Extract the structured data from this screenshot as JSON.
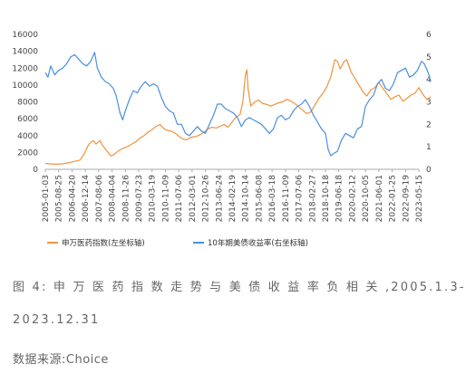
{
  "caption": {
    "line1": "图 4: 申 万 医 药 指 数 走 势 与 美 债 收 益 率 负 相 关 ,2005.1.3-",
    "line2": "2023.12.31",
    "source": "数据来源:Choice"
  },
  "colors": {
    "series1": "#f0923d",
    "series2": "#4a8fe0",
    "axis": "#aaaaaa"
  },
  "chart_data": {
    "type": "line",
    "legend_position": "bottom",
    "grid": false,
    "y_left": {
      "lim": [
        0,
        16000
      ],
      "ticks": [
        "0",
        "2000",
        "4000",
        "6000",
        "8000",
        "10000",
        "12000",
        "14000",
        "16000"
      ]
    },
    "y_right": {
      "lim": [
        0,
        6
      ],
      "ticks": [
        "0",
        "1",
        "2",
        "3",
        "4",
        "5",
        "6"
      ]
    },
    "x_ticks": [
      "2005-01-03",
      "2005-08-25",
      "2006-04-20",
      "2006-12-14",
      "2007-08-06",
      "2008-04-04",
      "2008-11-26",
      "2009-07-23",
      "2010-03-19",
      "2010-11-09",
      "2011-07-06",
      "2012-03-01",
      "2012-10-26",
      "2013-06-24",
      "2014-02-19",
      "2014-10-14",
      "2015-06-08",
      "2016-03-18",
      "2016-11-09",
      "2017-07-06",
      "2018-02-27",
      "2018-10-18",
      "2019-06-18",
      "2020-02-12",
      "2020-10-05",
      "2021-06-01",
      "2022-01-25",
      "2022-09-19",
      "2023-05-15"
    ],
    "series": [
      {
        "name": "申万医药指数(左坐标轴)",
        "axis": "left",
        "values": [
          [
            0,
            700
          ],
          [
            0.3,
            650
          ],
          [
            0.8,
            600
          ],
          [
            1.3,
            650
          ],
          [
            1.8,
            800
          ],
          [
            2.2,
            950
          ],
          [
            2.6,
            1100
          ],
          [
            2.9,
            1800
          ],
          [
            3.2,
            2800
          ],
          [
            3.4,
            3200
          ],
          [
            3.6,
            3400
          ],
          [
            3.8,
            3000
          ],
          [
            4.1,
            3400
          ],
          [
            4.3,
            2800
          ],
          [
            4.6,
            2200
          ],
          [
            4.9,
            1600
          ],
          [
            5.1,
            1700
          ],
          [
            5.4,
            2100
          ],
          [
            5.7,
            2400
          ],
          [
            6.0,
            2600
          ],
          [
            6.3,
            2800
          ],
          [
            6.6,
            3100
          ],
          [
            6.8,
            3300
          ],
          [
            7.1,
            3700
          ],
          [
            7.4,
            4000
          ],
          [
            7.7,
            4400
          ],
          [
            8.0,
            4700
          ],
          [
            8.3,
            5100
          ],
          [
            8.6,
            5300
          ],
          [
            8.9,
            4800
          ],
          [
            9.2,
            4600
          ],
          [
            9.5,
            4500
          ],
          [
            9.8,
            4200
          ],
          [
            10.1,
            3800
          ],
          [
            10.3,
            3600
          ],
          [
            10.6,
            3500
          ],
          [
            10.9,
            3800
          ],
          [
            11.3,
            3900
          ],
          [
            11.6,
            4100
          ],
          [
            11.9,
            4400
          ],
          [
            12.2,
            4800
          ],
          [
            12.5,
            5000
          ],
          [
            12.8,
            4900
          ],
          [
            13.1,
            5100
          ],
          [
            13.4,
            5300
          ],
          [
            13.7,
            5000
          ],
          [
            14.0,
            5600
          ],
          [
            14.3,
            6200
          ],
          [
            14.6,
            6500
          ],
          [
            14.8,
            8000
          ],
          [
            15.0,
            11200
          ],
          [
            15.1,
            11800
          ],
          [
            15.2,
            9500
          ],
          [
            15.4,
            7500
          ],
          [
            15.7,
            8000
          ],
          [
            16.0,
            8200
          ],
          [
            16.3,
            7800
          ],
          [
            16.6,
            7700
          ],
          [
            16.9,
            7500
          ],
          [
            17.2,
            7700
          ],
          [
            17.5,
            7900
          ],
          [
            17.8,
            8000
          ],
          [
            18.1,
            8300
          ],
          [
            18.4,
            8100
          ],
          [
            18.7,
            7800
          ],
          [
            19.0,
            7400
          ],
          [
            19.3,
            7000
          ],
          [
            19.6,
            6600
          ],
          [
            19.9,
            6800
          ],
          [
            20.2,
            7600
          ],
          [
            20.5,
            8400
          ],
          [
            20.8,
            9000
          ],
          [
            21.1,
            9800
          ],
          [
            21.4,
            11000
          ],
          [
            21.7,
            13000
          ],
          [
            21.9,
            12800
          ],
          [
            22.1,
            11900
          ],
          [
            22.4,
            12800
          ],
          [
            22.6,
            13000
          ],
          [
            22.9,
            11600
          ],
          [
            23.2,
            10800
          ],
          [
            23.5,
            10000
          ],
          [
            23.8,
            9200
          ],
          [
            24.1,
            8700
          ],
          [
            24.4,
            9400
          ],
          [
            24.7,
            9700
          ],
          [
            25.0,
            10300
          ],
          [
            25.3,
            9600
          ],
          [
            25.6,
            9000
          ],
          [
            25.9,
            8300
          ],
          [
            26.2,
            8600
          ],
          [
            26.5,
            8800
          ],
          [
            26.8,
            8100
          ],
          [
            27.1,
            8400
          ],
          [
            27.4,
            8800
          ],
          [
            27.7,
            9000
          ],
          [
            28.0,
            9700
          ],
          [
            28.3,
            8900
          ],
          [
            28.6,
            8300
          ],
          [
            28.9,
            8600
          ]
        ]
      },
      {
        "name": "10年期美债收益率(右坐标轴)",
        "axis": "right",
        "values": [
          [
            0,
            4.3
          ],
          [
            0.2,
            4.1
          ],
          [
            0.4,
            4.6
          ],
          [
            0.7,
            4.2
          ],
          [
            1.0,
            4.4
          ],
          [
            1.3,
            4.5
          ],
          [
            1.6,
            4.7
          ],
          [
            1.9,
            5.0
          ],
          [
            2.2,
            5.1
          ],
          [
            2.5,
            4.9
          ],
          [
            2.8,
            4.7
          ],
          [
            3.1,
            4.6
          ],
          [
            3.4,
            4.8
          ],
          [
            3.7,
            5.2
          ],
          [
            3.9,
            4.5
          ],
          [
            4.2,
            4.1
          ],
          [
            4.5,
            3.9
          ],
          [
            4.8,
            3.8
          ],
          [
            5.1,
            3.6
          ],
          [
            5.3,
            3.3
          ],
          [
            5.6,
            2.5
          ],
          [
            5.8,
            2.2
          ],
          [
            6.0,
            2.6
          ],
          [
            6.3,
            3.1
          ],
          [
            6.6,
            3.5
          ],
          [
            6.9,
            3.4
          ],
          [
            7.2,
            3.7
          ],
          [
            7.5,
            3.9
          ],
          [
            7.8,
            3.7
          ],
          [
            8.1,
            3.8
          ],
          [
            8.4,
            3.7
          ],
          [
            8.7,
            3.2
          ],
          [
            9.0,
            2.8
          ],
          [
            9.3,
            2.6
          ],
          [
            9.6,
            2.5
          ],
          [
            9.9,
            2.0
          ],
          [
            10.2,
            2.0
          ],
          [
            10.5,
            1.6
          ],
          [
            10.8,
            1.5
          ],
          [
            11.1,
            1.7
          ],
          [
            11.4,
            1.9
          ],
          [
            11.7,
            1.7
          ],
          [
            12.0,
            1.6
          ],
          [
            12.3,
            2.0
          ],
          [
            12.6,
            2.4
          ],
          [
            12.9,
            2.9
          ],
          [
            13.2,
            2.9
          ],
          [
            13.5,
            2.7
          ],
          [
            13.8,
            2.6
          ],
          [
            14.1,
            2.5
          ],
          [
            14.4,
            2.3
          ],
          [
            14.7,
            1.9
          ],
          [
            15.0,
            2.2
          ],
          [
            15.3,
            2.3
          ],
          [
            15.6,
            2.2
          ],
          [
            15.9,
            2.1
          ],
          [
            16.2,
            2.0
          ],
          [
            16.5,
            1.8
          ],
          [
            16.8,
            1.6
          ],
          [
            17.1,
            1.8
          ],
          [
            17.4,
            2.3
          ],
          [
            17.7,
            2.4
          ],
          [
            18.0,
            2.2
          ],
          [
            18.3,
            2.3
          ],
          [
            18.6,
            2.6
          ],
          [
            18.9,
            2.8
          ],
          [
            19.2,
            2.9
          ],
          [
            19.5,
            3.1
          ],
          [
            19.8,
            2.8
          ],
          [
            20.1,
            2.4
          ],
          [
            20.4,
            2.1
          ],
          [
            20.7,
            1.8
          ],
          [
            21.0,
            1.6
          ],
          [
            21.2,
            0.9
          ],
          [
            21.4,
            0.6
          ],
          [
            21.6,
            0.7
          ],
          [
            21.9,
            0.8
          ],
          [
            22.2,
            1.3
          ],
          [
            22.5,
            1.6
          ],
          [
            22.8,
            1.5
          ],
          [
            23.1,
            1.4
          ],
          [
            23.4,
            1.8
          ],
          [
            23.7,
            1.9
          ],
          [
            24.0,
            2.8
          ],
          [
            24.3,
            3.1
          ],
          [
            24.6,
            3.3
          ],
          [
            24.9,
            3.8
          ],
          [
            25.2,
            4.0
          ],
          [
            25.5,
            3.6
          ],
          [
            25.8,
            3.5
          ],
          [
            26.1,
            3.8
          ],
          [
            26.4,
            4.3
          ],
          [
            26.7,
            4.4
          ],
          [
            27.0,
            4.5
          ],
          [
            27.3,
            4.1
          ],
          [
            27.6,
            4.2
          ],
          [
            27.9,
            4.4
          ],
          [
            28.2,
            4.8
          ],
          [
            28.4,
            4.7
          ],
          [
            28.7,
            4.3
          ],
          [
            28.9,
            3.9
          ]
        ]
      }
    ]
  }
}
